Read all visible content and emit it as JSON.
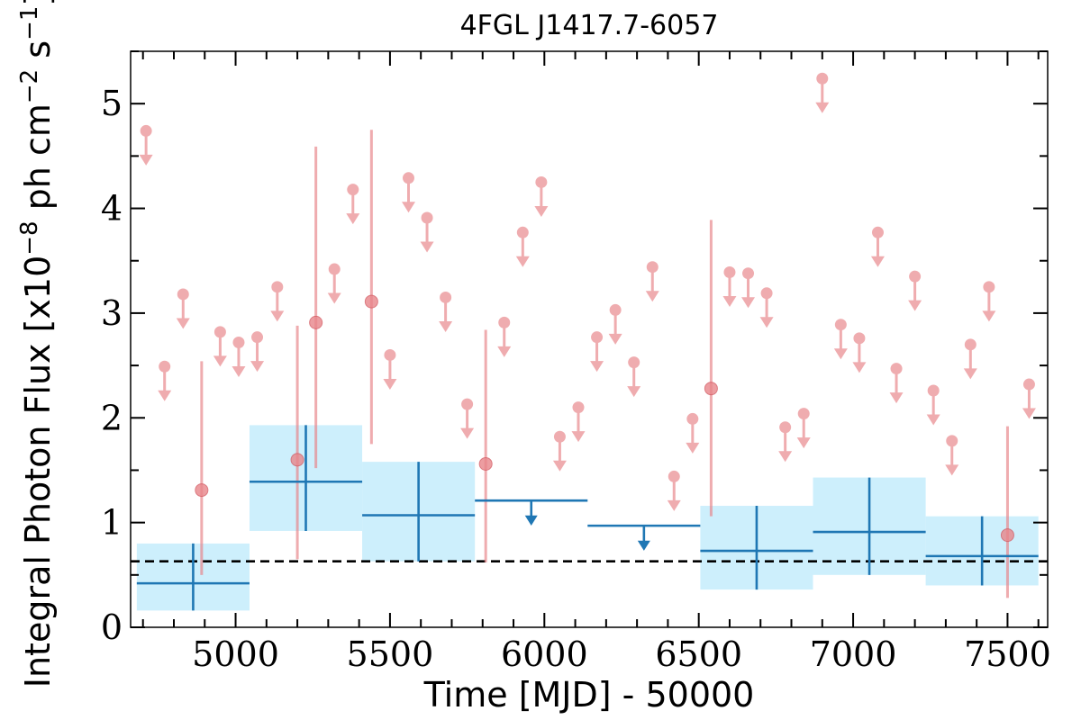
{
  "chart_data": {
    "type": "scatter",
    "title": "4FGL J1417.7-6057",
    "xlabel": "Time [MJD] - 50000",
    "ylabel_main": "Integral Photon Flux [x10",
    "ylabel_exp1": "−8",
    "ylabel_mid": " ph cm",
    "ylabel_exp2": "−2",
    "ylabel_s": " s",
    "ylabel_exp3": "−1",
    "ylabel_end": "]",
    "xlim": [
      4660,
      7630
    ],
    "ylim": [
      0,
      5.5
    ],
    "xticks": [
      5000,
      5500,
      6000,
      6500,
      7000,
      7500
    ],
    "yticks": [
      0,
      1,
      2,
      3,
      4,
      5
    ],
    "reference_level": 0.63,
    "colors": {
      "fine": "#e8858a",
      "coarse": "#1f77b4",
      "band": "#cdeffc",
      "reference": "#000000"
    },
    "fine_bins": {
      "upper_limits": [
        [
          4710,
          4.74
        ],
        [
          4770,
          2.49
        ],
        [
          4830,
          3.18
        ],
        [
          4950,
          2.82
        ],
        [
          5010,
          2.72
        ],
        [
          5070,
          2.77
        ],
        [
          5135,
          3.25
        ],
        [
          5320,
          3.42
        ],
        [
          5380,
          4.18
        ],
        [
          5500,
          2.6
        ],
        [
          5560,
          4.29
        ],
        [
          5620,
          3.91
        ],
        [
          5680,
          3.15
        ],
        [
          5750,
          2.13
        ],
        [
          5870,
          2.91
        ],
        [
          5930,
          3.77
        ],
        [
          5990,
          4.25
        ],
        [
          6050,
          1.82
        ],
        [
          6110,
          2.1
        ],
        [
          6170,
          2.77
        ],
        [
          6230,
          3.03
        ],
        [
          6290,
          2.53
        ],
        [
          6350,
          3.44
        ],
        [
          6420,
          1.44
        ],
        [
          6480,
          1.99
        ],
        [
          6600,
          3.39
        ],
        [
          6660,
          3.38
        ],
        [
          6720,
          3.19
        ],
        [
          6780,
          1.91
        ],
        [
          6840,
          2.04
        ],
        [
          6900,
          5.24
        ],
        [
          6960,
          2.89
        ],
        [
          7020,
          2.76
        ],
        [
          7080,
          3.77
        ],
        [
          7140,
          2.47
        ],
        [
          7200,
          3.35
        ],
        [
          7260,
          2.26
        ],
        [
          7320,
          1.78
        ],
        [
          7380,
          2.7
        ],
        [
          7440,
          3.25
        ],
        [
          7570,
          2.32
        ]
      ],
      "detections": [
        [
          4890,
          1.31,
          0.5,
          2.54
        ],
        [
          5200,
          1.6,
          0.65,
          2.88
        ],
        [
          5260,
          2.91,
          1.52,
          4.59
        ],
        [
          5440,
          3.11,
          1.75,
          4.75
        ],
        [
          5810,
          1.56,
          0.62,
          2.84
        ],
        [
          6540,
          2.28,
          1.06,
          3.89
        ],
        [
          7500,
          0.88,
          0.28,
          1.92
        ]
      ]
    },
    "coarse_bins": {
      "detections": [
        [
          4680,
          5045,
          0.42,
          0.16,
          0.8
        ],
        [
          5045,
          5410,
          1.39,
          0.92,
          1.93
        ],
        [
          5410,
          5775,
          1.07,
          0.63,
          1.58
        ],
        [
          6505,
          6870,
          0.73,
          0.36,
          1.16
        ],
        [
          6870,
          7235,
          0.91,
          0.5,
          1.43
        ],
        [
          7235,
          7600,
          0.68,
          0.4,
          1.06
        ]
      ],
      "upper_limits": [
        [
          5775,
          6140,
          1.21
        ],
        [
          6140,
          6505,
          0.97
        ]
      ]
    }
  }
}
